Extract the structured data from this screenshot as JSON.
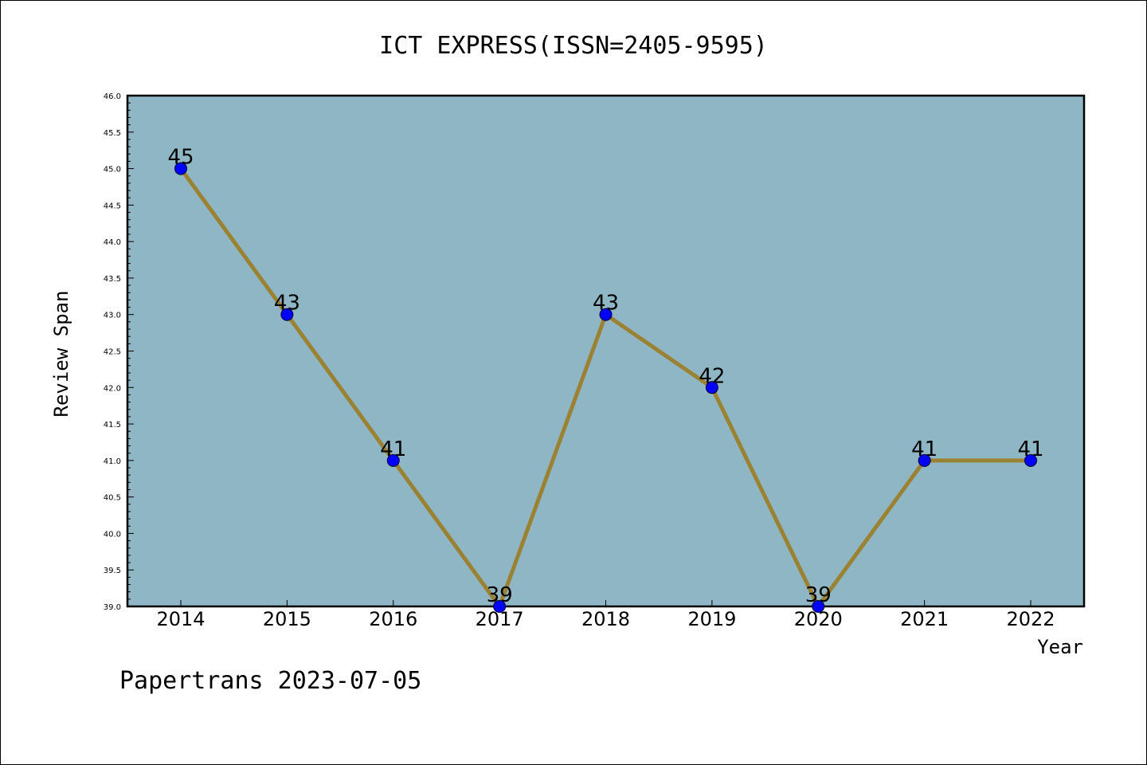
{
  "footer_text": "Papertrans 2023-07-05",
  "chart_data": {
    "type": "line",
    "title": "ICT EXPRESS(ISSN=2405-9595)",
    "xlabel": "Year",
    "ylabel": "Review Span",
    "categories": [
      "2014",
      "2015",
      "2016",
      "2017",
      "2018",
      "2019",
      "2020",
      "2021",
      "2022"
    ],
    "series": [
      {
        "values": [
          45,
          43,
          41,
          39,
          43,
          42,
          39,
          41,
          41
        ]
      }
    ],
    "data_labels": [
      "45",
      "43",
      "41",
      "39",
      "43",
      "42",
      "39",
      "41",
      "41"
    ],
    "ylim": [
      39.0,
      46.0
    ],
    "yticks": [
      "39.0",
      "39.5",
      "40.0",
      "40.5",
      "41.0",
      "41.5",
      "42.0",
      "42.5",
      "43.0",
      "43.5",
      "44.0",
      "44.5",
      "45.0",
      "45.5",
      "46.0"
    ],
    "grid": false,
    "colors": {
      "plot_background": "#8fb6c4",
      "line": "#9a8232",
      "marker": "#0000ff",
      "marker_edge": "#000033"
    }
  }
}
